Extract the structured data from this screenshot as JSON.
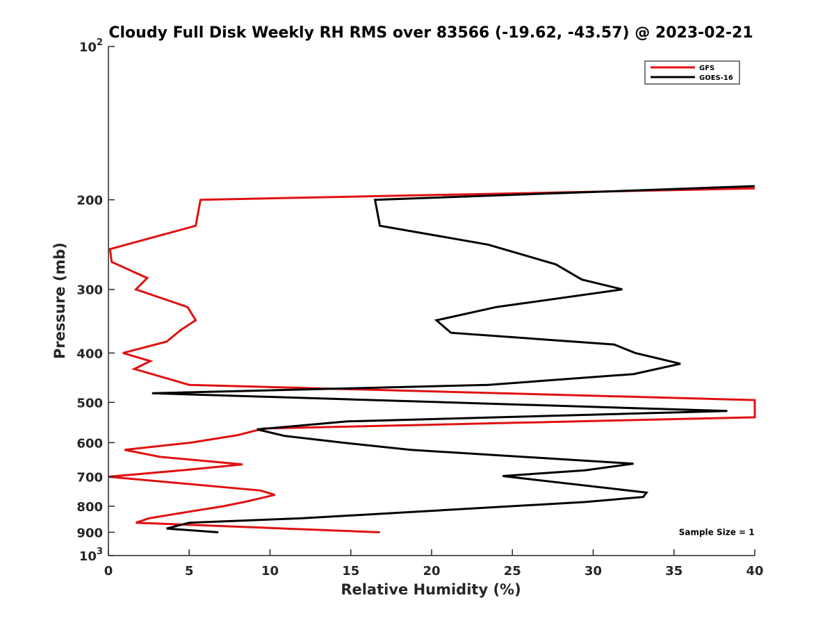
{
  "chart_data": {
    "type": "line",
    "title": "Cloudy Full Disk Weekly RH RMS over 83566 (-19.62, -43.57) @ 2023-02-21",
    "xlabel": "Relative Humidity (%)",
    "ylabel": "Pressure (mb)",
    "xlim": [
      0,
      40
    ],
    "ylim": [
      100,
      1000
    ],
    "y_scale": "log",
    "y_reversed": true,
    "grid": false,
    "legend_position": "top-right",
    "x_ticks": [
      0,
      5,
      10,
      15,
      20,
      25,
      30,
      35,
      40
    ],
    "x_tick_labels": [
      "0",
      "5",
      "10",
      "15",
      "20",
      "25",
      "30",
      "35",
      "40"
    ],
    "y_ticks": [
      {
        "value": 100,
        "label": "10",
        "sup": "2"
      },
      {
        "value": 200,
        "label": "200",
        "sup": ""
      },
      {
        "value": 300,
        "label": "300",
        "sup": ""
      },
      {
        "value": 400,
        "label": "400",
        "sup": ""
      },
      {
        "value": 500,
        "label": "500",
        "sup": ""
      },
      {
        "value": 600,
        "label": "600",
        "sup": ""
      },
      {
        "value": 700,
        "label": "700",
        "sup": ""
      },
      {
        "value": 800,
        "label": "800",
        "sup": ""
      },
      {
        "value": 900,
        "label": "900",
        "sup": ""
      },
      {
        "value": 1000,
        "label": "10",
        "sup": "3"
      }
    ],
    "series": [
      {
        "name": "GFS",
        "color": "#e01010",
        "points": [
          {
            "x": 40.0,
            "y": 190
          },
          {
            "x": 5.7,
            "y": 200
          },
          {
            "x": 5.4,
            "y": 225
          },
          {
            "x": 0.1,
            "y": 250
          },
          {
            "x": 0.2,
            "y": 265
          },
          {
            "x": 2.4,
            "y": 285
          },
          {
            "x": 1.7,
            "y": 300
          },
          {
            "x": 4.9,
            "y": 325
          },
          {
            "x": 5.4,
            "y": 345
          },
          {
            "x": 4.5,
            "y": 360
          },
          {
            "x": 3.6,
            "y": 380
          },
          {
            "x": 0.9,
            "y": 400
          },
          {
            "x": 2.6,
            "y": 415
          },
          {
            "x": 1.6,
            "y": 430
          },
          {
            "x": 5.0,
            "y": 462
          },
          {
            "x": 40.0,
            "y": 495
          },
          {
            "x": 40.0,
            "y": 535
          },
          {
            "x": 9.6,
            "y": 563
          },
          {
            "x": 8.0,
            "y": 580
          },
          {
            "x": 5.1,
            "y": 600
          },
          {
            "x": 1.0,
            "y": 620
          },
          {
            "x": 3.2,
            "y": 640
          },
          {
            "x": 8.3,
            "y": 662
          },
          {
            "x": 5.0,
            "y": 678
          },
          {
            "x": 0.0,
            "y": 700
          },
          {
            "x": 4.2,
            "y": 720
          },
          {
            "x": 9.4,
            "y": 745
          },
          {
            "x": 10.3,
            "y": 760
          },
          {
            "x": 8.4,
            "y": 785
          },
          {
            "x": 7.1,
            "y": 800
          },
          {
            "x": 5.0,
            "y": 820
          },
          {
            "x": 2.5,
            "y": 845
          },
          {
            "x": 1.7,
            "y": 862
          },
          {
            "x": 16.8,
            "y": 900
          }
        ]
      },
      {
        "name": "GOES-16",
        "color": "#000000",
        "points": [
          {
            "x": 40.0,
            "y": 188
          },
          {
            "x": 16.5,
            "y": 200
          },
          {
            "x": 16.8,
            "y": 225
          },
          {
            "x": 23.5,
            "y": 245
          },
          {
            "x": 27.7,
            "y": 268
          },
          {
            "x": 29.3,
            "y": 287
          },
          {
            "x": 31.8,
            "y": 300
          },
          {
            "x": 24.0,
            "y": 325
          },
          {
            "x": 20.3,
            "y": 345
          },
          {
            "x": 21.2,
            "y": 365
          },
          {
            "x": 31.3,
            "y": 385
          },
          {
            "x": 32.6,
            "y": 400
          },
          {
            "x": 35.4,
            "y": 420
          },
          {
            "x": 32.5,
            "y": 440
          },
          {
            "x": 23.5,
            "y": 462
          },
          {
            "x": 2.7,
            "y": 480
          },
          {
            "x": 38.3,
            "y": 520
          },
          {
            "x": 14.8,
            "y": 545
          },
          {
            "x": 9.2,
            "y": 565
          },
          {
            "x": 10.9,
            "y": 582
          },
          {
            "x": 14.5,
            "y": 600
          },
          {
            "x": 18.7,
            "y": 620
          },
          {
            "x": 32.5,
            "y": 660
          },
          {
            "x": 29.5,
            "y": 680
          },
          {
            "x": 24.4,
            "y": 698
          },
          {
            "x": 33.3,
            "y": 752
          },
          {
            "x": 33.1,
            "y": 767
          },
          {
            "x": 29.5,
            "y": 785
          },
          {
            "x": 11.9,
            "y": 845
          },
          {
            "x": 5.0,
            "y": 862
          },
          {
            "x": 3.6,
            "y": 885
          },
          {
            "x": 6.8,
            "y": 900
          }
        ]
      }
    ],
    "annotations": [
      {
        "text": "Sample Size = 1",
        "x": 35.3,
        "y": 900
      }
    ]
  }
}
